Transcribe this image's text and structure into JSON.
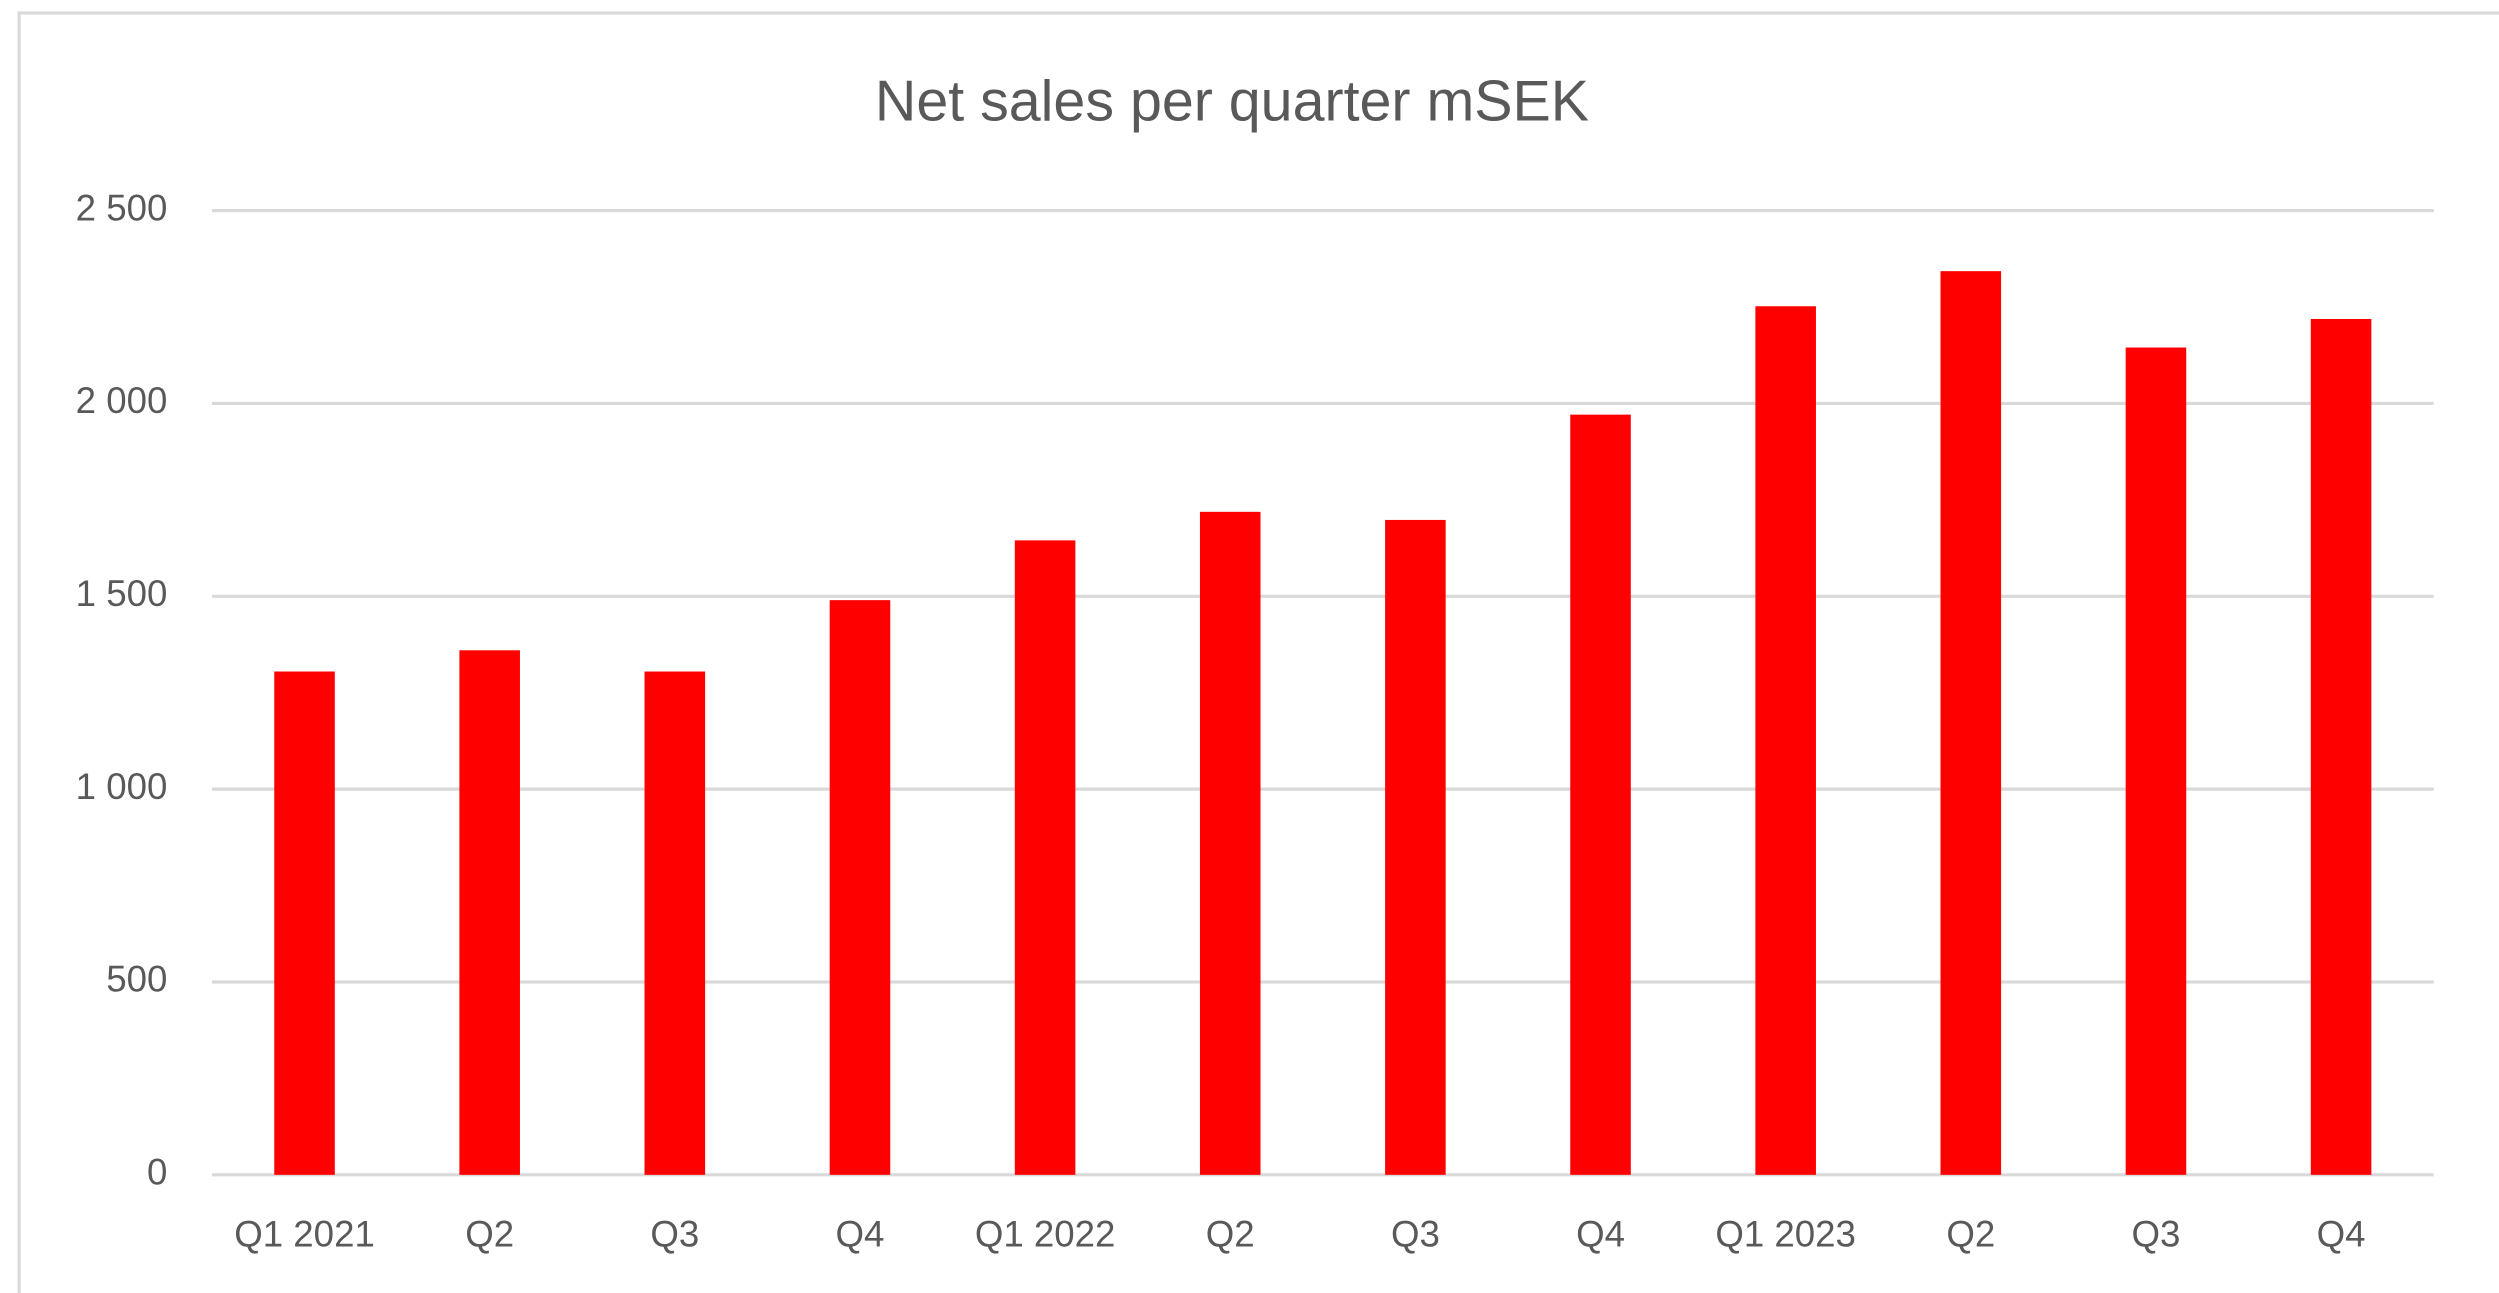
{
  "chart_data": {
    "type": "bar",
    "title": "Net sales per quarter mSEK",
    "categories": [
      "Q1 2021",
      "Q2",
      "Q3",
      "Q4",
      "Q1 2022",
      "Q2",
      "Q3",
      "Q4",
      "Q1 2023",
      "Q2",
      "Q3",
      "Q4"
    ],
    "values": [
      1305,
      1360,
      1305,
      1490,
      1645,
      1719,
      1698,
      1971,
      2252,
      2343,
      2145,
      2219
    ],
    "color": "#ff0000",
    "ylim": [
      0,
      2500
    ],
    "yticks": [
      0,
      500,
      {
        "value": 1000,
        "label": "1 000"
      },
      {
        "value": 1500,
        "label": "1 500"
      },
      {
        "value": 2000,
        "label": "2 000"
      },
      {
        "value": 2500,
        "label": "2 500"
      }
    ],
    "grid": true
  }
}
